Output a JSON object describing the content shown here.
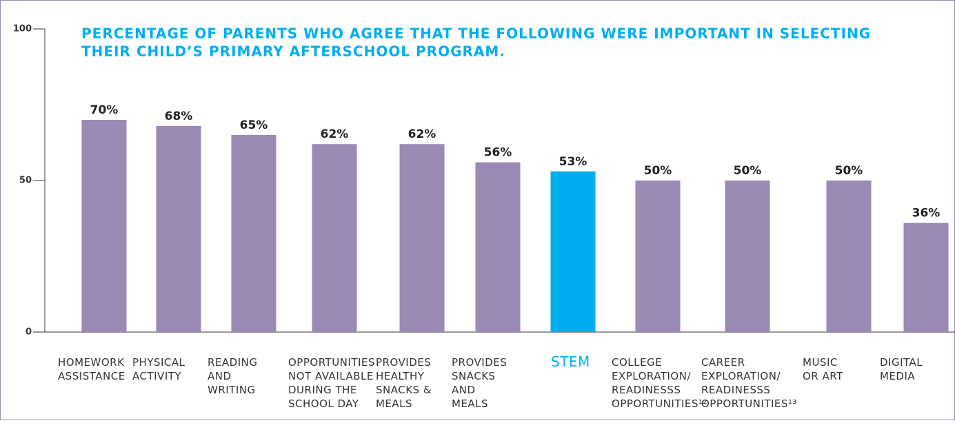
{
  "chart_data": {
    "type": "bar",
    "title": [
      "PERCENTAGE OF PARENTS WHO AGREE THAT THE FOLLOWING WERE IMPORTANT IN SELECTING",
      "THEIR CHILD’S PRIMARY AFTERSCHOOL PROGRAM."
    ],
    "categories": [
      [
        "HOMEWORK",
        "ASSISTANCE"
      ],
      [
        "PHYSICAL",
        "ACTIVITY"
      ],
      [
        "READING",
        "AND",
        "WRITING"
      ],
      [
        "OPPORTUNITIES",
        "NOT AVAILABLE",
        "DURING THE",
        "SCHOOL DAY"
      ],
      [
        "PROVIDES",
        "HEALTHY",
        "SNACKS &",
        "MEALS"
      ],
      [
        "PROVIDES",
        "SNACKS",
        "AND",
        "MEALS"
      ],
      [
        "STEM"
      ],
      [
        "COLLEGE",
        "EXPLORATION/",
        "READINESSS",
        "OPPORTUNITIES¹²"
      ],
      [
        "CAREER",
        "EXPLORATION/",
        "READINESSS",
        "OPPORTUNITIES¹³"
      ],
      [
        "MUSIC",
        "OR ART"
      ],
      [
        "DIGITAL",
        "MEDIA"
      ]
    ],
    "values": [
      70,
      68,
      65,
      62,
      62,
      56,
      53,
      50,
      50,
      50,
      36
    ],
    "value_labels": [
      "70%",
      "68%",
      "65%",
      "62%",
      "62%",
      "56%",
      "53%",
      "50%",
      "50%",
      "50%",
      "36%"
    ],
    "colors": [
      "#9a89b4",
      "#9a89b4",
      "#9a89b4",
      "#9a89b4",
      "#9a89b4",
      "#9a89b4",
      "#00aeef",
      "#9a89b4",
      "#9a89b4",
      "#9a89b4",
      "#9a89b4"
    ],
    "ylim": [
      0,
      100
    ],
    "yticks": [
      0,
      50,
      100
    ]
  }
}
